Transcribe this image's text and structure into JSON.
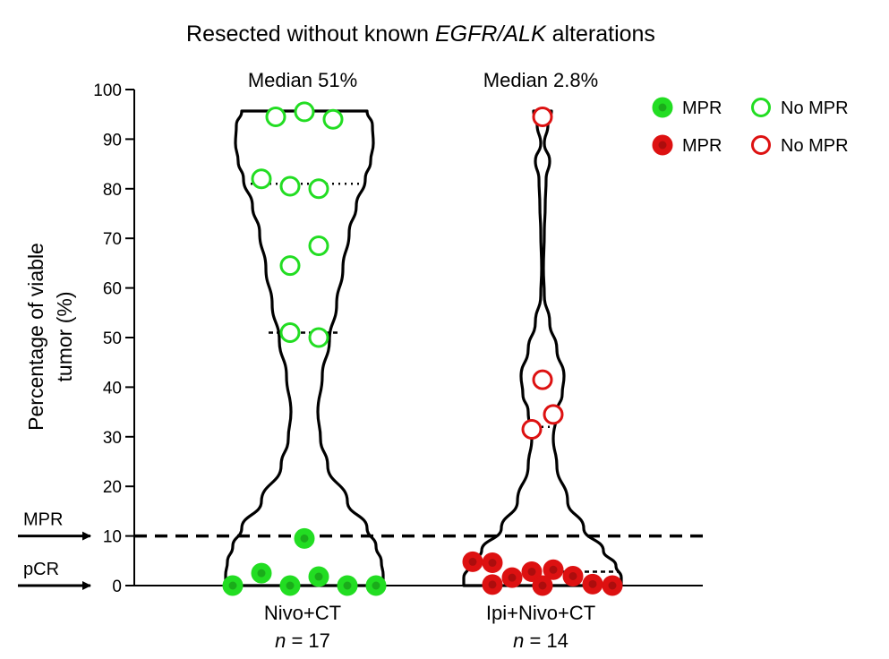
{
  "chart_data": {
    "type": "violin-dot",
    "title_prefix": "Resected without known ",
    "title_italic": "EGFR/ALK",
    "title_suffix": " alterations",
    "ylabel_line1": "Percentage of viable",
    "ylabel_line2": "tumor (%)",
    "ylim": [
      0,
      100
    ],
    "yticks": [
      0,
      10,
      20,
      30,
      40,
      50,
      60,
      70,
      80,
      90,
      100
    ],
    "thresholds": [
      {
        "name": "MPR",
        "value": 10
      },
      {
        "name": "pCR",
        "value": 0
      }
    ],
    "groups": [
      {
        "name": "Nivo+CT",
        "n_prefix": "n",
        "n_suffix": " = 17",
        "median_label": "Median 51%",
        "color": "#22dd22",
        "quartiles": [
          0,
          51,
          81
        ],
        "points": [
          {
            "y": 95.5,
            "mpr": false
          },
          {
            "y": 94.5,
            "mpr": false
          },
          {
            "y": 94,
            "mpr": false
          },
          {
            "y": 82,
            "mpr": false
          },
          {
            "y": 80.5,
            "mpr": false
          },
          {
            "y": 80,
            "mpr": false
          },
          {
            "y": 68.5,
            "mpr": false
          },
          {
            "y": 64.5,
            "mpr": false
          },
          {
            "y": 51,
            "mpr": false
          },
          {
            "y": 50,
            "mpr": false
          },
          {
            "y": 9.5,
            "mpr": true
          },
          {
            "y": 2.5,
            "mpr": true
          },
          {
            "y": 1.8,
            "mpr": true
          },
          {
            "y": 0,
            "mpr": true
          },
          {
            "y": 0,
            "mpr": true
          },
          {
            "y": 0,
            "mpr": true
          },
          {
            "y": 0,
            "mpr": true
          }
        ]
      },
      {
        "name": "Ipi+Nivo+CT",
        "n_prefix": "n",
        "n_suffix": " = 14",
        "median_label": "Median 2.8%",
        "color": "#dd1111",
        "quartiles": [
          0,
          2.8,
          32
        ],
        "points": [
          {
            "y": 94.5,
            "mpr": false
          },
          {
            "y": 41.5,
            "mpr": false
          },
          {
            "y": 34.5,
            "mpr": false
          },
          {
            "y": 31.5,
            "mpr": false
          },
          {
            "y": 4.8,
            "mpr": true
          },
          {
            "y": 4.6,
            "mpr": true
          },
          {
            "y": 3.2,
            "mpr": true
          },
          {
            "y": 2.8,
            "mpr": true
          },
          {
            "y": 1.9,
            "mpr": true
          },
          {
            "y": 1.6,
            "mpr": true
          },
          {
            "y": 0.3,
            "mpr": true
          },
          {
            "y": 0.2,
            "mpr": true
          },
          {
            "y": 0,
            "mpr": true
          },
          {
            "y": 0,
            "mpr": true
          }
        ]
      }
    ],
    "legend": [
      {
        "label": "MPR",
        "color": "#22dd22",
        "filled": true
      },
      {
        "label": "No MPR",
        "color": "#22dd22",
        "filled": false
      },
      {
        "label": "MPR",
        "color": "#dd1111",
        "filled": true
      },
      {
        "label": "No MPR",
        "color": "#dd1111",
        "filled": false
      }
    ],
    "legend_position": "top-right",
    "grid": false
  }
}
